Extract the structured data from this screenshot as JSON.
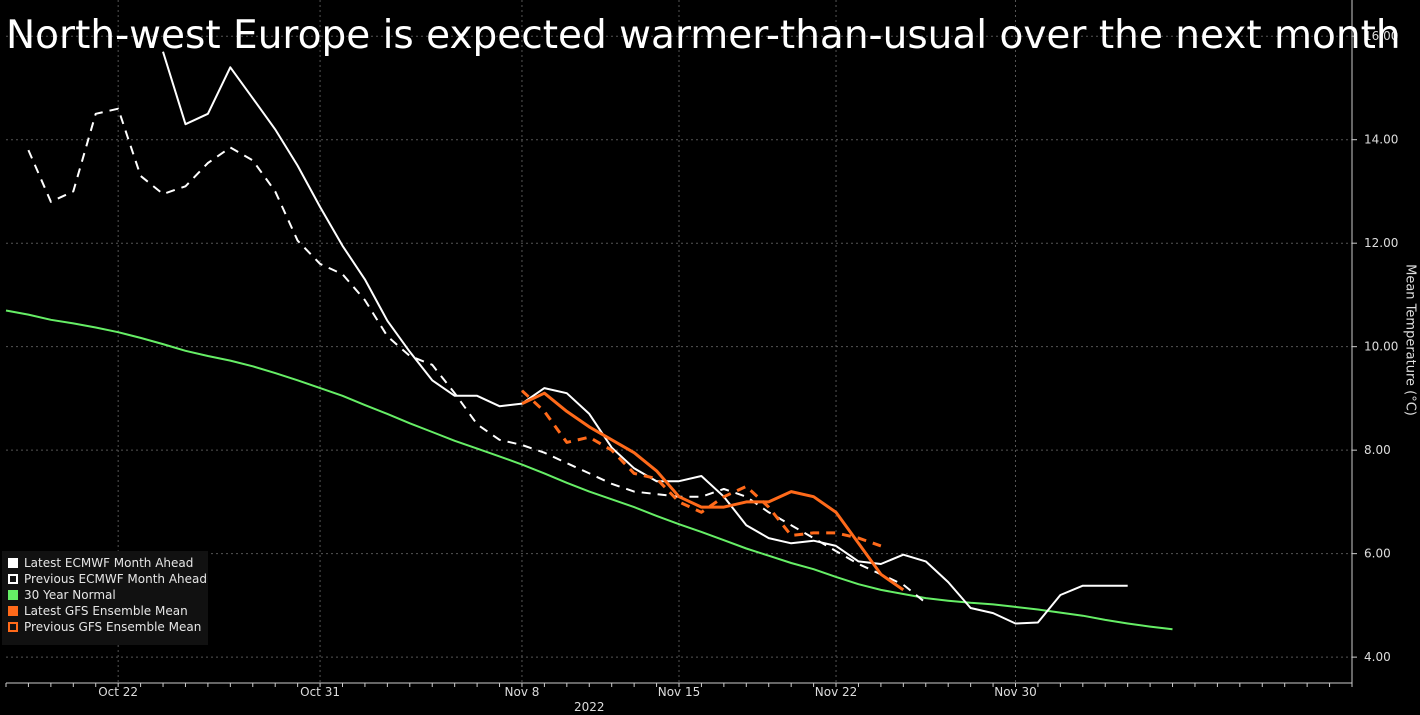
{
  "title": "North-west Europe is expected warmer-than-usual over the next month",
  "chart_data": {
    "type": "line",
    "title": "North-west Europe is expected warmer-than-usual over the next month",
    "xlabel": "2022",
    "ylabel": "Mean Temperature (°C)",
    "xlim": [
      -5,
      55
    ],
    "ylim": [
      3.5,
      16.7
    ],
    "x_ticks": [
      {
        "x": 0,
        "label": "Oct 22"
      },
      {
        "x": 9,
        "label": "Oct 31"
      },
      {
        "x": 18,
        "label": "Nov 8"
      },
      {
        "x": 25,
        "label": "Nov 15"
      },
      {
        "x": 32,
        "label": "Nov 22"
      },
      {
        "x": 40,
        "label": "Nov 30"
      }
    ],
    "y_ticks": [
      {
        "y": 4,
        "label": "4.00"
      },
      {
        "y": 6,
        "label": "6.00"
      },
      {
        "y": 8,
        "label": "8.00"
      },
      {
        "y": 10,
        "label": "10.00"
      },
      {
        "y": 12,
        "label": "12.00"
      },
      {
        "y": 14,
        "label": "14.00"
      },
      {
        "y": 16,
        "label": "16.00"
      }
    ],
    "grid": true,
    "series": [
      {
        "name": "30 Year Normal",
        "color": "#66ee66",
        "dash": false,
        "x": [
          -5,
          -4,
          -3,
          -2,
          -1,
          0,
          1,
          2,
          3,
          4,
          5,
          6,
          7,
          8,
          9,
          10,
          11,
          12,
          13,
          14,
          15,
          16,
          17,
          18,
          19,
          20,
          21,
          22,
          23,
          24,
          25,
          26,
          27,
          28,
          29,
          30,
          31,
          32,
          33,
          34,
          35,
          36,
          37,
          38,
          39,
          40,
          41,
          42,
          43,
          44,
          45,
          46,
          47
        ],
        "y": [
          10.7,
          10.62,
          10.52,
          10.45,
          10.37,
          10.28,
          10.17,
          10.05,
          9.92,
          9.82,
          9.73,
          9.62,
          9.49,
          9.35,
          9.2,
          9.05,
          8.87,
          8.7,
          8.52,
          8.35,
          8.18,
          8.03,
          7.88,
          7.72,
          7.55,
          7.37,
          7.2,
          7.05,
          6.9,
          6.73,
          6.57,
          6.42,
          6.26,
          6.1,
          5.96,
          5.82,
          5.7,
          5.55,
          5.41,
          5.3,
          5.22,
          5.14,
          5.09,
          5.05,
          5.02,
          4.97,
          4.92,
          4.86,
          4.8,
          4.72,
          4.65,
          4.59,
          4.54
        ]
      },
      {
        "name": "Previous ECMWF Month Ahead",
        "color": "#ffffff",
        "dash": true,
        "x": [
          -4,
          -3,
          -2,
          -1,
          0,
          1,
          2,
          3,
          4,
          5,
          6,
          7,
          8,
          9,
          10,
          11,
          12,
          13,
          14,
          15,
          16,
          17,
          18,
          19,
          20,
          21,
          22,
          23,
          24,
          25,
          26,
          27,
          28,
          29,
          30,
          31,
          32,
          33,
          34,
          35,
          36
        ],
        "y": [
          13.8,
          12.8,
          13.0,
          14.5,
          14.6,
          13.3,
          12.95,
          13.1,
          13.55,
          13.85,
          13.6,
          13.0,
          12.05,
          11.6,
          11.4,
          10.9,
          10.2,
          9.82,
          9.65,
          9.1,
          8.5,
          8.2,
          8.1,
          7.95,
          7.75,
          7.55,
          7.35,
          7.2,
          7.15,
          7.1,
          7.1,
          7.25,
          7.1,
          6.8,
          6.55,
          6.3,
          6.05,
          5.8,
          5.6,
          5.4,
          5.05
        ]
      },
      {
        "name": "Latest ECMWF Month Ahead",
        "color": "#ffffff",
        "dash": false,
        "x": [
          2,
          3,
          4,
          5,
          6,
          7,
          8,
          9,
          10,
          11,
          12,
          13,
          14,
          15,
          16,
          17,
          18,
          19,
          20,
          21,
          22,
          23,
          24,
          25,
          26,
          27,
          28,
          29,
          30,
          31,
          32,
          33,
          34,
          35,
          36,
          37,
          38,
          39,
          40,
          41,
          42,
          43,
          44,
          45
        ],
        "y": [
          15.7,
          14.3,
          14.5,
          15.4,
          14.8,
          14.2,
          13.5,
          12.7,
          11.95,
          11.3,
          10.5,
          9.9,
          9.35,
          9.05,
          9.05,
          8.85,
          8.9,
          9.2,
          9.1,
          8.7,
          8.05,
          7.65,
          7.4,
          7.4,
          7.5,
          7.1,
          6.55,
          6.3,
          6.2,
          6.25,
          6.15,
          5.85,
          5.8,
          5.98,
          5.85,
          5.45,
          4.95,
          4.85,
          4.65,
          4.67,
          5.2,
          5.38,
          5.38,
          5.38
        ]
      },
      {
        "name": "Previous GFS Ensemble Mean",
        "color": "#ff6a1a",
        "dash": true,
        "x": [
          18,
          19,
          20,
          21,
          22,
          23,
          24,
          25,
          26,
          27,
          28,
          29,
          30,
          31,
          32,
          33,
          34
        ],
        "y": [
          9.15,
          8.75,
          8.15,
          8.25,
          8.0,
          7.55,
          7.45,
          7.0,
          6.8,
          7.1,
          7.3,
          6.9,
          6.35,
          6.4,
          6.4,
          6.3,
          6.15
        ]
      },
      {
        "name": "Latest GFS Ensemble Mean",
        "color": "#ff6a1a",
        "dash": false,
        "x": [
          18,
          19,
          20,
          21,
          22,
          23,
          24,
          25,
          26,
          27,
          28,
          29,
          30,
          31,
          32,
          33,
          34,
          35
        ],
        "y": [
          8.9,
          9.1,
          8.75,
          8.45,
          8.2,
          7.95,
          7.6,
          7.1,
          6.9,
          6.9,
          7.0,
          7.0,
          7.2,
          7.1,
          6.8,
          6.2,
          5.6,
          5.3
        ]
      }
    ]
  },
  "legend": {
    "items": [
      {
        "label": "Latest ECMWF Month Ahead",
        "color": "#ffffff",
        "dash": false
      },
      {
        "label": "Previous ECMWF Month Ahead",
        "color": "#ffffff",
        "dash": true
      },
      {
        "label": "30 Year Normal",
        "color": "#66ee66",
        "dash": false
      },
      {
        "label": "Latest GFS Ensemble Mean",
        "color": "#ff6a1a",
        "dash": false
      },
      {
        "label": "Previous GFS Ensemble Mean",
        "color": "#ff6a1a",
        "dash": true
      }
    ]
  },
  "colors": {
    "background": "#000000",
    "grid": "#555555",
    "axis": "#cccccc"
  }
}
